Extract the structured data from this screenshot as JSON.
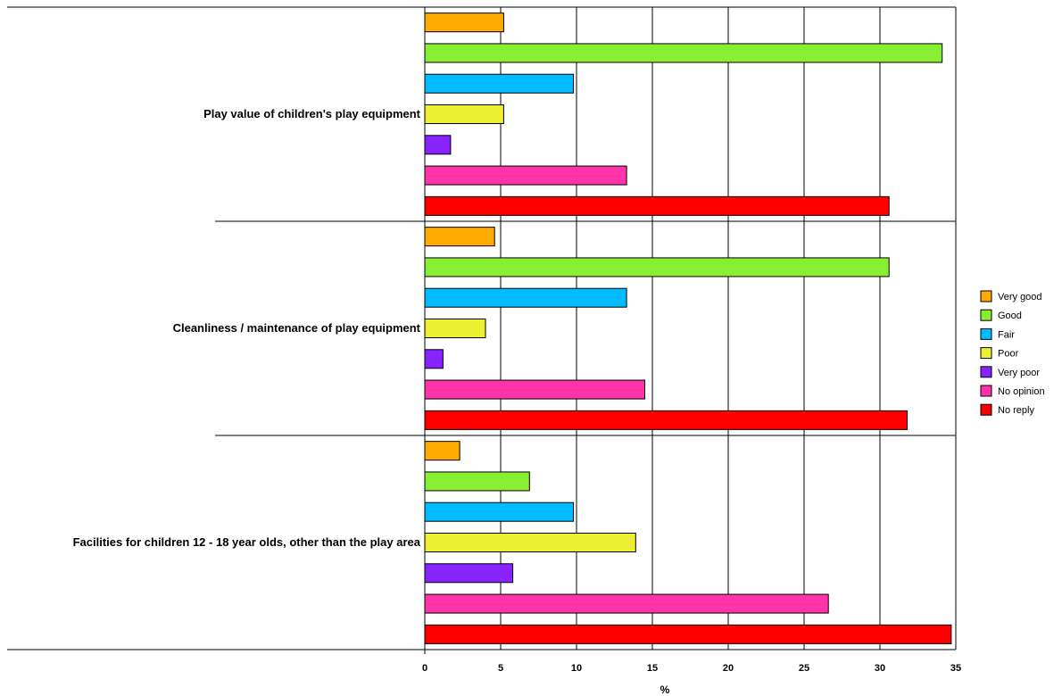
{
  "colors": {
    "Very good": "#ffaa00",
    "Good": "#88ee33",
    "Fair": "#00bbff",
    "Poor": "#eeee33",
    "Very poor": "#8822ff",
    "No opinion": "#ff33aa",
    "No reply": "#ff0000"
  },
  "chart_data": {
    "type": "bar",
    "orientation": "horizontal",
    "categories": [
      "Play value of children's play equipment",
      "Cleanliness / maintenance of play equipment",
      "Facilities for children 12 - 18 year olds, other than the play area"
    ],
    "series": [
      {
        "name": "Very good",
        "values": [
          5.2,
          4.6,
          2.3
        ]
      },
      {
        "name": "Good",
        "values": [
          34.1,
          30.6,
          6.9
        ]
      },
      {
        "name": "Fair",
        "values": [
          9.8,
          13.3,
          9.8
        ]
      },
      {
        "name": "Poor",
        "values": [
          5.2,
          4.0,
          13.9
        ]
      },
      {
        "name": "Very poor",
        "values": [
          1.7,
          1.2,
          5.8
        ]
      },
      {
        "name": "No opinion",
        "values": [
          13.3,
          14.5,
          26.6
        ]
      },
      {
        "name": "No reply",
        "values": [
          30.6,
          31.8,
          34.7
        ]
      }
    ],
    "xlabel": "%",
    "xlim": [
      0,
      35
    ],
    "xticks": [
      "0",
      "5",
      "10",
      "15",
      "20",
      "25",
      "30",
      "35"
    ],
    "grid": true,
    "legend_position": "right"
  }
}
